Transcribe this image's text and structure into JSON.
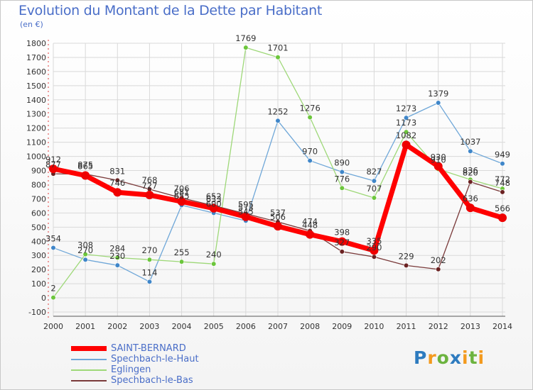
{
  "header": {
    "title": "Evolution du Montant de la Dette par Habitant",
    "unit": "(en €)"
  },
  "logo": {
    "text": "Proxiti",
    "letters": [
      {
        "ch": "P",
        "color": "#2e7bbf"
      },
      {
        "ch": "r",
        "color": "#f39a1e"
      },
      {
        "ch": "o",
        "color": "#6cb33f"
      },
      {
        "ch": "x",
        "color": "#2e7bbf"
      },
      {
        "ch": "i",
        "color": "#f39a1e"
      },
      {
        "ch": "t",
        "color": "#6cb33f"
      },
      {
        "ch": "i",
        "color": "#f39a1e"
      }
    ]
  },
  "chart_data": {
    "type": "line",
    "title": "Evolution du Montant de la Dette par Habitant",
    "subtitle": "(en €)",
    "x": [
      "2000",
      "2001",
      "2002",
      "2003",
      "2004",
      "2005",
      "2006",
      "2007",
      "2008",
      "2009",
      "2010",
      "2011",
      "2012",
      "2013",
      "2014"
    ],
    "ylim": [
      -100,
      1800
    ],
    "yticks": [
      -100,
      0,
      100,
      200,
      300,
      400,
      500,
      600,
      700,
      800,
      900,
      1000,
      1100,
      1200,
      1300,
      1400,
      1500,
      1600,
      1700,
      1800
    ],
    "grid": true,
    "legend_position": "bottom-left",
    "series": [
      {
        "name": "Spechbach-le-Haut",
        "color": "#6fa7d8",
        "marker": "#3f86c9",
        "width": 1.3,
        "values": [
          354,
          270,
          230,
          114,
          655,
          600,
          545,
          1252,
          970,
          890,
          827,
          1273,
          1379,
          1037,
          949
        ],
        "labels": [
          "354",
          "270",
          "230",
          "114",
          "655",
          "600",
          "545",
          "1252",
          "970",
          "890",
          "827",
          "1273",
          "1379",
          "1037",
          "949"
        ]
      },
      {
        "name": "Eglingen",
        "color": "#9ed878",
        "marker": "#6cc63c",
        "width": 1.3,
        "values": [
          2,
          308,
          284,
          270,
          255,
          240,
          1769,
          1701,
          1276,
          776,
          707,
          1173,
          910,
          836,
          772
        ],
        "labels": [
          "2",
          "308",
          "284",
          "270",
          "255",
          "240",
          "1769",
          "1701",
          "1276",
          "776",
          "707",
          "1173",
          "910",
          "836",
          "772"
        ]
      },
      {
        "name": "Spechbach-le-Bas",
        "color": "#7a3a3a",
        "marker": "#6b2222",
        "width": 1.3,
        "values": [
          877,
          875,
          831,
          768,
          706,
          652,
          595,
          537,
          474,
          327,
          290,
          229,
          202,
          820,
          748
        ],
        "labels": [
          "877",
          "875",
          "831",
          "768",
          "706",
          "652",
          "595",
          "537",
          "474",
          "327",
          "290",
          "229",
          "202",
          "820",
          "748"
        ]
      },
      {
        "name": "SAINT-BERNARD",
        "color": "#ff0000",
        "marker": "#ee0000",
        "width": 7,
        "values": [
          912,
          865,
          746,
          727,
          681,
          633,
          573,
          506,
          448,
          398,
          335,
          1082,
          930,
          636,
          566
        ],
        "labels": [
          "912",
          "865",
          "746",
          "727",
          "681",
          "633",
          "573",
          "506",
          "448",
          "398",
          "335",
          "1082",
          "930",
          "636",
          "566"
        ]
      }
    ]
  },
  "legend": [
    {
      "name": "SAINT-BERNARD",
      "color": "#ff0000",
      "width": 7
    },
    {
      "name": "Spechbach-le-Haut",
      "color": "#6fa7d8",
      "width": 1.5
    },
    {
      "name": "Eglingen",
      "color": "#9ed878",
      "width": 1.5
    },
    {
      "name": "Spechbach-le-Bas",
      "color": "#7a3a3a",
      "width": 1.5
    }
  ]
}
